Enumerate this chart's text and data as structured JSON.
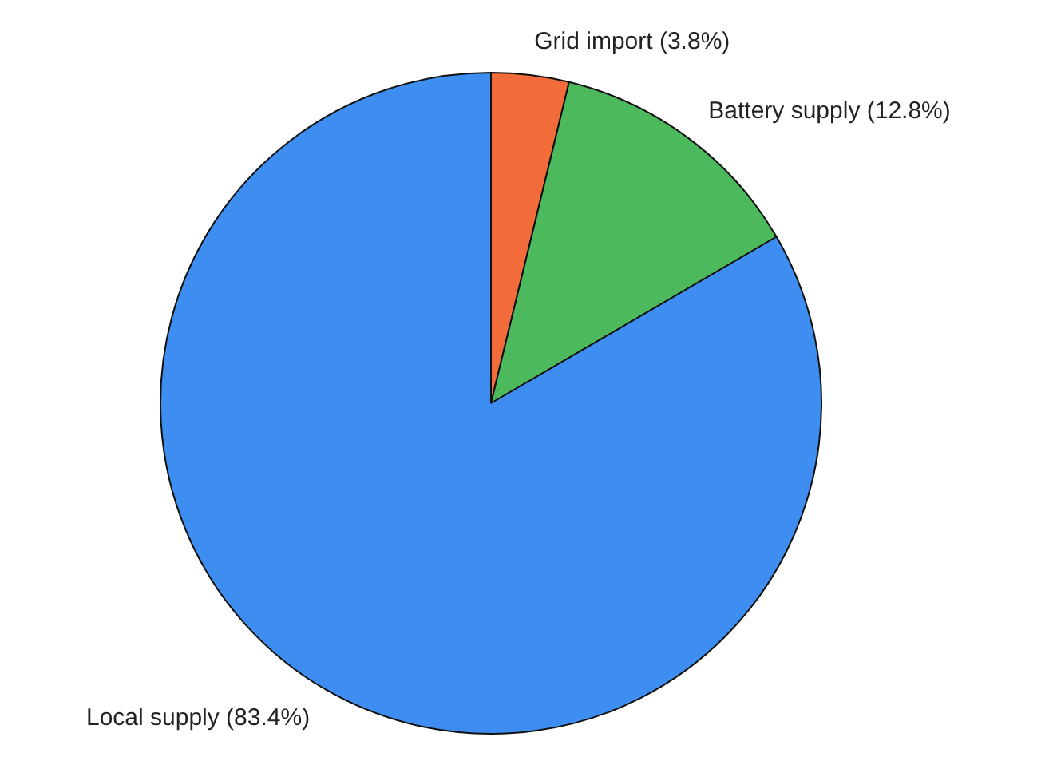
{
  "chart_data": {
    "type": "pie",
    "categories": [
      "Grid import (3.8%)",
      "Battery supply (12.8%)",
      "Local supply (83.4%)"
    ],
    "values": [
      3.8,
      12.8,
      83.4
    ],
    "colors": [
      "#f26b3a",
      "#4cba5c",
      "#3d8ef0"
    ],
    "legend": false
  }
}
